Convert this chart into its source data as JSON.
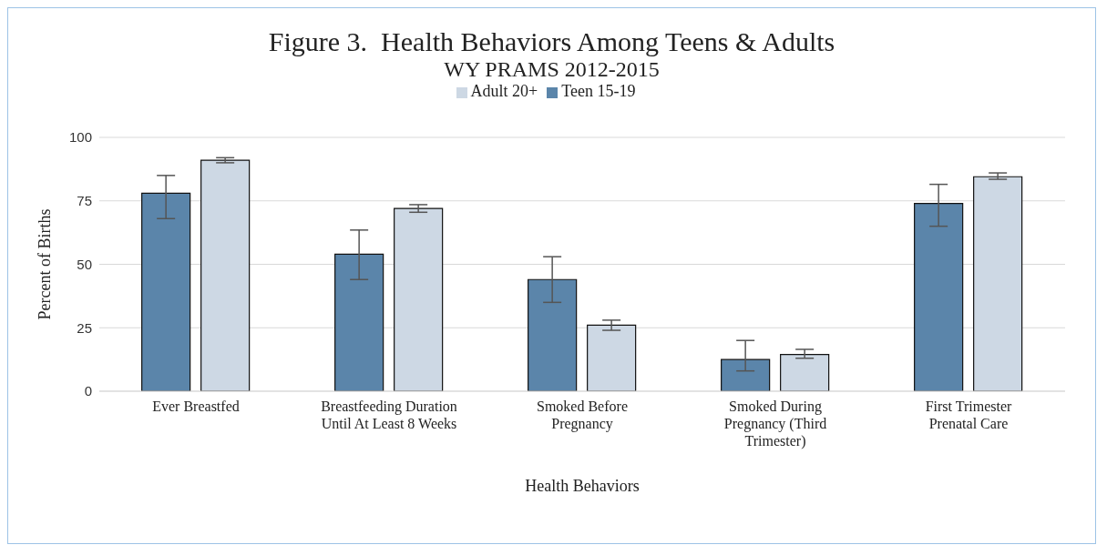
{
  "chart_data": {
    "type": "bar",
    "title": "Figure 3.  Health Behaviors Among Teens & Adults",
    "subtitle": "WY PRAMS 2012-2015",
    "xlabel": "Health Behaviors",
    "ylabel": "Percent of Births",
    "categories": [
      "Ever Breastfed",
      "Breastfeeding Duration Until At Least 8 Weeks",
      "Smoked Before Pregnancy",
      "Smoked During Pregnancy (Third Trimester)",
      "First Trimester Prenatal Care"
    ],
    "series": [
      {
        "name": "Teen 15-19",
        "color": "#5b85aa",
        "values": [
          78,
          54,
          44,
          12.5,
          74
        ],
        "errors": [
          [
            68,
            85
          ],
          [
            44,
            63.5
          ],
          [
            35,
            53
          ],
          [
            8,
            20
          ],
          [
            65,
            81.5
          ]
        ]
      },
      {
        "name": "Adult 20+",
        "color": "#cdd8e4",
        "values": [
          91,
          72,
          26,
          14.5,
          84.5
        ],
        "errors": [
          [
            90,
            92
          ],
          [
            70.5,
            73.5
          ],
          [
            24,
            28
          ],
          [
            13,
            16.5
          ],
          [
            83.5,
            86
          ]
        ]
      }
    ],
    "ylim": [
      0,
      100
    ],
    "yticks": [
      0,
      25,
      50,
      75,
      100
    ],
    "grid": "y",
    "legend": "top"
  }
}
